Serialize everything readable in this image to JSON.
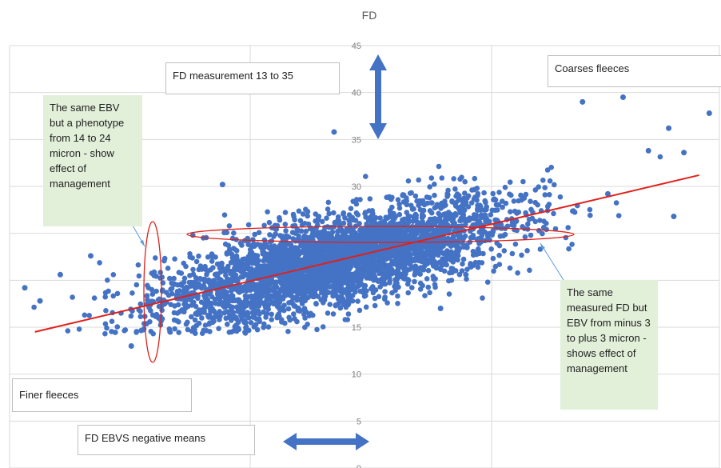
{
  "chart_data": {
    "type": "scatter",
    "title": "FD",
    "xlabel": "",
    "ylabel": "",
    "ylim": [
      0,
      45
    ],
    "y_ticks": [
      0,
      5,
      10,
      15,
      20,
      25,
      30,
      35,
      40,
      45
    ],
    "xlim": [
      -6,
      8
    ],
    "grid": true,
    "point_color": "#4472c4",
    "trendline": {
      "color": "#e0201a",
      "x": [
        -5.5,
        7.6
      ],
      "y": [
        14.5,
        31.2
      ]
    },
    "outlier_points": [
      {
        "x": -5.7,
        "y": 19.2
      },
      {
        "x": -5.4,
        "y": 17.8
      },
      {
        "x": -5.0,
        "y": 20.6
      },
      {
        "x": -4.4,
        "y": 22.6
      },
      {
        "x": 6.1,
        "y": 39.5
      },
      {
        "x": 7.8,
        "y": 37.8
      },
      {
        "x": 5.3,
        "y": 39.0
      },
      {
        "x": 7.0,
        "y": 36.2
      },
      {
        "x": 7.3,
        "y": 33.6
      },
      {
        "x": 7.1,
        "y": 26.8
      },
      {
        "x": 6.6,
        "y": 33.8
      },
      {
        "x": 0.4,
        "y": 35.8
      },
      {
        "x": -1.8,
        "y": 30.2
      },
      {
        "x": 5.8,
        "y": 29.2
      },
      {
        "x": 3.0,
        "y": 20.6
      },
      {
        "x": -3.6,
        "y": 13.0
      },
      {
        "x": 2.5,
        "y": 17.0
      }
    ]
  },
  "annotations": {
    "fd_measurement": "FD measurement  13 to 35",
    "coarser": "Coarses fleeces",
    "finer": "Finer fleeces",
    "ebvs_negative": "FD EBVS  negative means",
    "same_ebv": "The same EBV but a phenotype from 14 to 24 micron - show effect of management",
    "same_fd": "The same measured FD but EBV from minus 3 to plus 3 micron - shows effect of management"
  },
  "colors": {
    "arrow": "#4472c4",
    "ellipse": "#e0201a",
    "green_box": "#e2efd9",
    "grid": "#d9d9d9"
  }
}
